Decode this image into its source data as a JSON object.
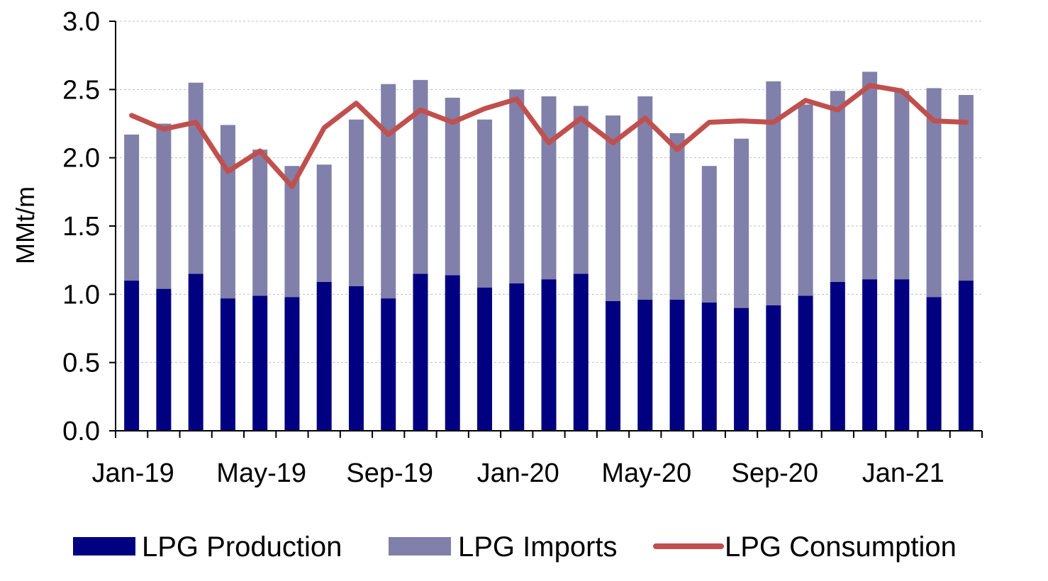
{
  "chart_data": {
    "type": "bar",
    "stacked": true,
    "title": "",
    "xlabel": "",
    "ylabel": "MMt/m",
    "ylim": [
      0,
      3.0
    ],
    "yticks": [
      "0.0",
      "0.5",
      "1.0",
      "1.5",
      "2.0",
      "2.5",
      "3.0"
    ],
    "grid": "horizontal dashed",
    "legend_position": "bottom",
    "categories": [
      "Jan-19",
      "Feb-19",
      "Mar-19",
      "Apr-19",
      "May-19",
      "Jun-19",
      "Jul-19",
      "Aug-19",
      "Sep-19",
      "Oct-19",
      "Nov-19",
      "Dec-19",
      "Jan-20",
      "Feb-20",
      "Mar-20",
      "Apr-20",
      "May-20",
      "Jun-20",
      "Jul-20",
      "Aug-20",
      "Sep-20",
      "Oct-20",
      "Nov-20",
      "Dec-20",
      "Jan-21",
      "Feb-21",
      "Mar-21"
    ],
    "x_tick_labels": [
      {
        "index": 0,
        "label": "Jan-19"
      },
      {
        "index": 4,
        "label": "May-19"
      },
      {
        "index": 8,
        "label": "Sep-19"
      },
      {
        "index": 12,
        "label": "Jan-20"
      },
      {
        "index": 16,
        "label": "May-20"
      },
      {
        "index": 20,
        "label": "Sep-20"
      },
      {
        "index": 24,
        "label": "Jan-21"
      }
    ],
    "series": [
      {
        "name": "LPG Production",
        "kind": "bar",
        "color": "#000080",
        "values": [
          1.1,
          1.04,
          1.15,
          0.97,
          0.99,
          0.98,
          1.09,
          1.06,
          0.97,
          1.15,
          1.14,
          1.05,
          1.08,
          1.11,
          1.15,
          0.95,
          0.96,
          0.96,
          0.94,
          0.9,
          0.92,
          0.99,
          1.09,
          1.11,
          1.11,
          0.98,
          1.1
        ]
      },
      {
        "name": "LPG Imports",
        "kind": "bar",
        "color": "#8080aa",
        "values": [
          1.07,
          1.21,
          1.4,
          1.27,
          1.07,
          0.96,
          0.86,
          1.22,
          1.57,
          1.42,
          1.3,
          1.23,
          1.42,
          1.34,
          1.23,
          1.36,
          1.49,
          1.22,
          1.0,
          1.24,
          1.64,
          1.4,
          1.4,
          1.52,
          1.38,
          1.53,
          1.36
        ]
      },
      {
        "name": "LPG Consumption",
        "kind": "line",
        "color": "#c0504d",
        "values": [
          2.31,
          2.21,
          2.26,
          1.9,
          2.05,
          1.79,
          2.22,
          2.4,
          2.17,
          2.35,
          2.26,
          2.36,
          2.43,
          2.11,
          2.29,
          2.11,
          2.29,
          2.06,
          2.26,
          2.27,
          2.26,
          2.42,
          2.35,
          2.53,
          2.49,
          2.27,
          2.26
        ]
      }
    ]
  }
}
